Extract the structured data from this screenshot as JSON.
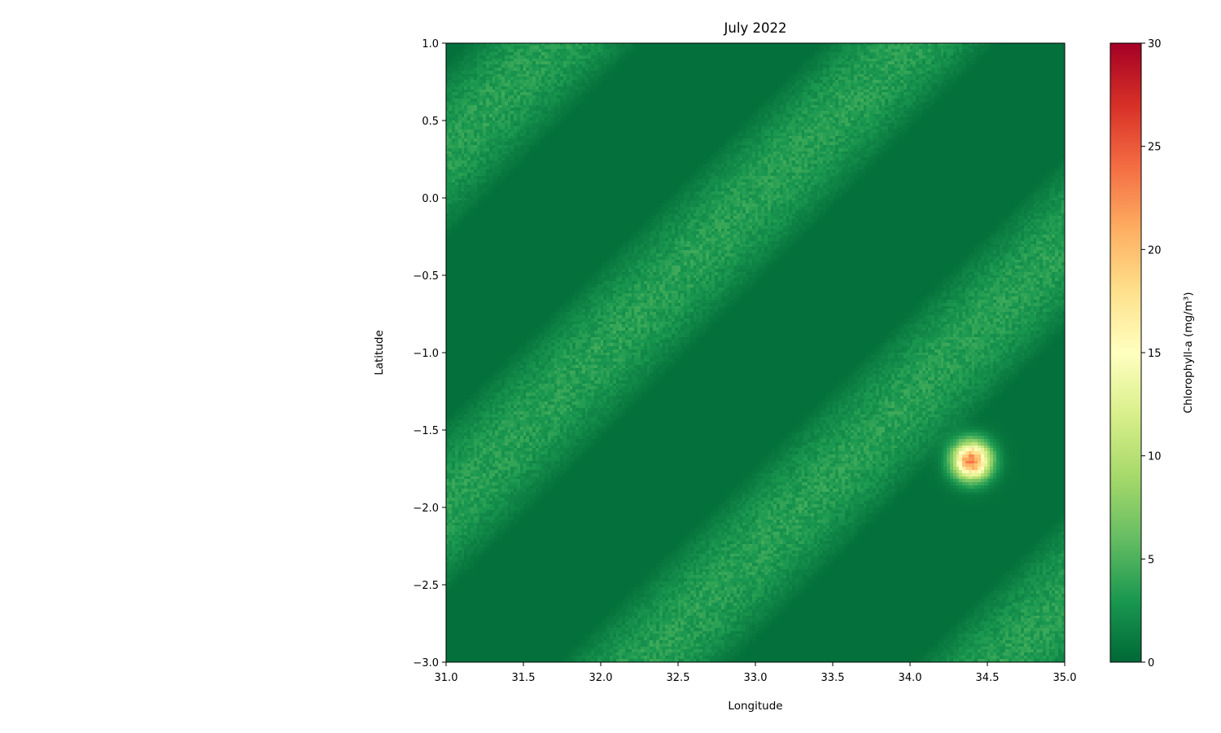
{
  "chart_data": {
    "type": "heatmap",
    "title": "July 2022",
    "xlabel": "Longitude",
    "ylabel": "Latitude",
    "xlim": [
      31.0,
      35.0
    ],
    "ylim": [
      -3.0,
      1.0
    ],
    "x_ticks": [
      "31.0",
      "31.5",
      "32.0",
      "32.5",
      "33.0",
      "33.5",
      "34.0",
      "34.5",
      "35.0"
    ],
    "y_ticks": [
      "1.0",
      "0.5",
      "0.0",
      "−0.5",
      "−1.0",
      "−1.5",
      "−2.0",
      "−2.5",
      "−3.0"
    ],
    "x_tick_values": [
      31.0,
      31.5,
      32.0,
      32.5,
      33.0,
      33.5,
      34.0,
      34.5,
      35.0
    ],
    "y_tick_values": [
      1.0,
      0.5,
      0.0,
      -0.5,
      -1.0,
      -1.5,
      -2.0,
      -2.5,
      -3.0
    ],
    "colorbar": {
      "label": "Chlorophyll-a (mg/m³)",
      "vmin": 0,
      "vmax": 30,
      "ticks": [
        "0",
        "5",
        "10",
        "15",
        "20",
        "25",
        "30"
      ],
      "tick_values": [
        0,
        5,
        10,
        15,
        20,
        25,
        30
      ],
      "colormap": "RdYlGn_r",
      "colors": [
        "#006837",
        "#1a9850",
        "#66bd63",
        "#a6d96a",
        "#d9ef8b",
        "#ffffbf",
        "#fee08b",
        "#fdae61",
        "#f46d43",
        "#d73027",
        "#a50026"
      ]
    },
    "grid": false,
    "field": {
      "background_value": 0.5,
      "bands": [
        {
          "description": "diagonal band",
          "peak_value": 3.5
        },
        {
          "description": "diagonal band",
          "peak_value": 3.5
        },
        {
          "description": "diagonal band",
          "peak_value": 3.5
        },
        {
          "description": "diagonal band",
          "peak_value": 3.5
        }
      ],
      "hotspot": {
        "longitude": 34.4,
        "latitude": -1.7,
        "peak_value": 23
      }
    }
  }
}
